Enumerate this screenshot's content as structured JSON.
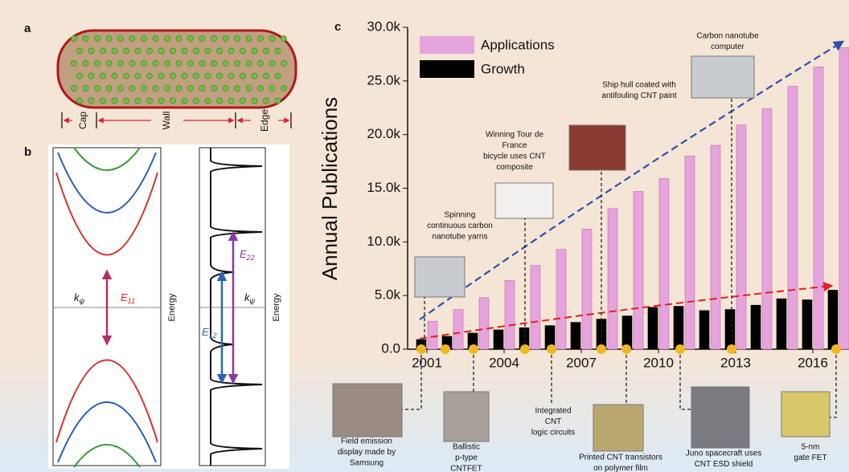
{
  "panel_labels": {
    "a": "a",
    "b": "b",
    "c": "c"
  },
  "panel_a": {
    "cap": "Cap",
    "wall": "Wall",
    "edge": "Edge"
  },
  "panel_b": {
    "k_left": [
      "k",
      "ψ"
    ],
    "e11": [
      "E",
      "11"
    ],
    "energy_left": "Energy",
    "e12": [
      "E",
      "12"
    ],
    "e22": [
      "E",
      "22"
    ],
    "k_right": [
      "k",
      "ψ"
    ],
    "energy_right": "Energy"
  },
  "chart_data": {
    "type": "bar",
    "ylabel": "Annual Publications",
    "categories": [
      "2001",
      null,
      null,
      "2004",
      null,
      null,
      "2007",
      null,
      null,
      "2010",
      null,
      null,
      "2013",
      null,
      null,
      "2016",
      null
    ],
    "series": [
      {
        "name": "Applications",
        "color": "#e6a4dc",
        "values": [
          2600,
          3700,
          4800,
          6400,
          7800,
          9300,
          11200,
          13100,
          14700,
          15900,
          18000,
          19000,
          20900,
          22400,
          24500,
          26300,
          28100
        ]
      },
      {
        "name": "Growth",
        "color": "#000000",
        "values": [
          900,
          1200,
          1500,
          1800,
          2000,
          2200,
          2500,
          2800,
          3100,
          3900,
          4000,
          3600,
          3700,
          4100,
          4700,
          4600,
          5500
        ]
      }
    ],
    "ylim": [
      0,
      30000
    ],
    "yticks": [
      {
        "value": 0,
        "label": "0.0"
      },
      {
        "value": 5000,
        "label": "5.0k"
      },
      {
        "value": 10000,
        "label": "10.0k"
      },
      {
        "value": 15000,
        "label": "15.0k"
      },
      {
        "value": 20000,
        "label": "20.0k"
      },
      {
        "value": 25000,
        "label": "25.0k"
      },
      {
        "value": 30000,
        "label": "30.0k"
      }
    ],
    "legend": "upper left",
    "annotations": [
      {
        "lines": [
          "Carbon nanotube",
          "computer"
        ]
      },
      {
        "lines": [
          "Ship hull coated with",
          "antifouling CNT paint"
        ]
      },
      {
        "lines": [
          "Winning Tour de",
          "France",
          "bicycle uses CNT",
          "composite"
        ]
      },
      {
        "lines": [
          "Spinning",
          "continuous carbon",
          "nanotube yarns"
        ]
      },
      {
        "lines": [
          "Field emission",
          "display made by",
          "Samsung"
        ]
      },
      {
        "lines": [
          "Ballistic",
          "p-type",
          "CNTFET"
        ]
      },
      {
        "lines": [
          "Integrated",
          "CNT",
          "logic circuits"
        ]
      },
      {
        "lines": [
          "Printed CNT transistors",
          "on polymer film"
        ]
      },
      {
        "lines": [
          "Juno spacecraft uses",
          "CNT ESD shield"
        ]
      },
      {
        "lines": [
          "5-nm",
          "gate FET"
        ]
      }
    ]
  }
}
